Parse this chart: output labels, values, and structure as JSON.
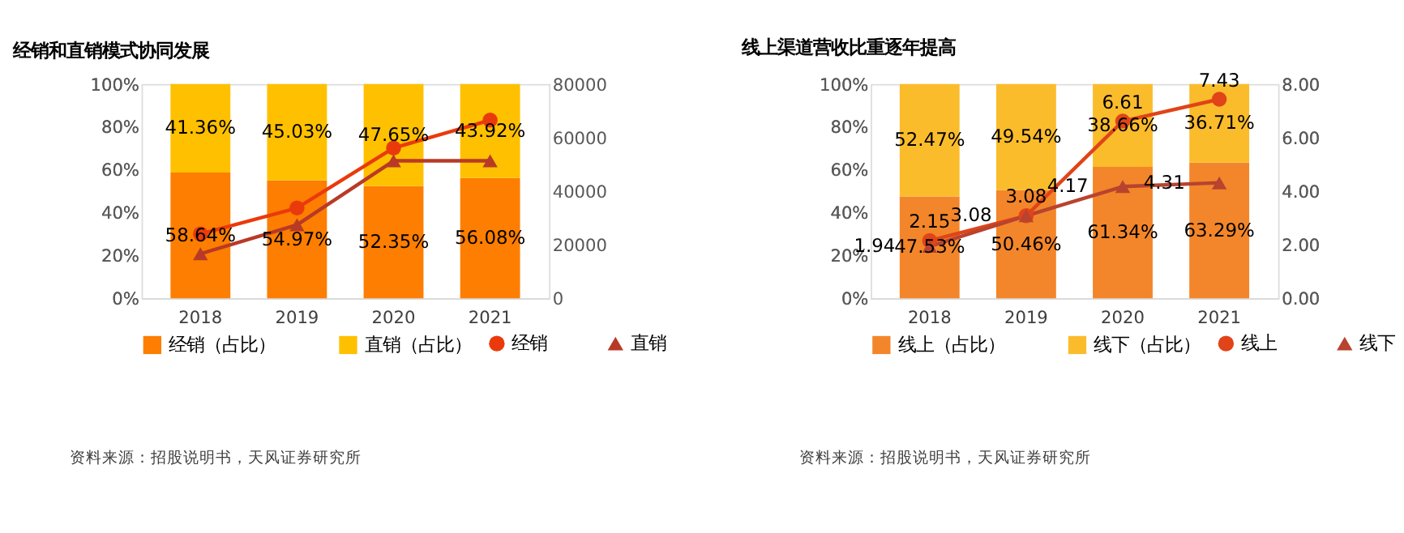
{
  "chart_data": [
    {
      "type": "bar",
      "title": "经销和直销模式协同发展",
      "stacked": true,
      "categories": [
        "2018",
        "2019",
        "2020",
        "2021"
      ],
      "ylim": [
        0,
        100
      ],
      "yticks": [
        {
          "value": 0,
          "label": "0%"
        },
        {
          "value": 20,
          "label": "20%"
        },
        {
          "value": 40,
          "label": "40%"
        },
        {
          "value": 60,
          "label": "60%"
        },
        {
          "value": 80,
          "label": "80%"
        },
        {
          "value": 100,
          "label": "100%"
        }
      ],
      "y2lim": [
        0,
        80000
      ],
      "y2ticks": [
        0,
        20000,
        40000,
        60000,
        80000
      ],
      "grid": false,
      "legend": "bottom",
      "series": [
        {
          "name": "经销（占比）",
          "color": "#fd7e00",
          "values": [
            58.64,
            54.97,
            52.35,
            56.08
          ],
          "value_labels": [
            "58.64%",
            "54.97%",
            "52.35%",
            "56.08%"
          ]
        },
        {
          "name": "直销（占比）",
          "color": "#ffc000",
          "values": [
            41.36,
            45.03,
            47.65,
            43.92
          ],
          "value_labels": [
            "41.36%",
            "45.03%",
            "47.65%",
            "43.92%"
          ]
        },
        {
          "name": "经销",
          "type": "line",
          "axis": "y2",
          "marker": "circle",
          "color": "#ea3a0c",
          "values": [
            24000,
            33700,
            56100,
            66500
          ]
        },
        {
          "name": "直销",
          "type": "line",
          "axis": "y2",
          "marker": "triangle",
          "color": "#b83a26",
          "values": [
            16600,
            27400,
            51300,
            51300
          ]
        }
      ],
      "annotations": [
        "资料来源：招股说明书，天风证券研究所"
      ]
    },
    {
      "type": "bar",
      "title": "线上渠道营收比重逐年提高",
      "stacked": true,
      "categories": [
        "2018",
        "2019",
        "2020",
        "2021"
      ],
      "ylim": [
        0,
        100
      ],
      "yticks": [
        {
          "value": 0,
          "label": "0%"
        },
        {
          "value": 20,
          "label": "20%"
        },
        {
          "value": 40,
          "label": "40%"
        },
        {
          "value": 60,
          "label": "60%"
        },
        {
          "value": 80,
          "label": "80%"
        },
        {
          "value": 100,
          "label": "100%"
        }
      ],
      "y2lim": [
        0,
        8
      ],
      "y2ticks": [
        {
          "value": 0,
          "label": "0.00"
        },
        {
          "value": 2,
          "label": "2.00"
        },
        {
          "value": 4,
          "label": "4.00"
        },
        {
          "value": 6,
          "label": "6.00"
        },
        {
          "value": 8,
          "label": "8.00"
        }
      ],
      "grid": false,
      "legend": "bottom",
      "series": [
        {
          "name": "线上（占比）",
          "color": "#f3862a",
          "values": [
            47.53,
            50.46,
            61.34,
            63.29
          ],
          "value_labels": [
            "47.53%",
            "50.46%",
            "61.34%",
            "63.29%"
          ]
        },
        {
          "name": "线下（占比）",
          "color": "#fbbc2c",
          "values": [
            52.47,
            49.54,
            38.66,
            36.71
          ],
          "value_labels": [
            "52.47%",
            "49.54%",
            "38.66%",
            "36.71%"
          ]
        },
        {
          "name": "线上",
          "type": "line",
          "axis": "y2",
          "marker": "circle",
          "color": "#e04418",
          "values": [
            2.15,
            3.08,
            6.61,
            7.43
          ],
          "value_labels": [
            "2.15",
            "3.08",
            "6.61",
            "7.43"
          ]
        },
        {
          "name": "线下",
          "type": "line",
          "axis": "y2",
          "marker": "triangle",
          "color": "#b8432e",
          "values": [
            1.94,
            3.08,
            4.17,
            4.31
          ],
          "value_labels": [
            "1.94",
            "3.08",
            "4.17",
            "4.31"
          ]
        }
      ],
      "annotations": [
        "资料来源：招股说明书，天风证券研究所"
      ]
    }
  ]
}
